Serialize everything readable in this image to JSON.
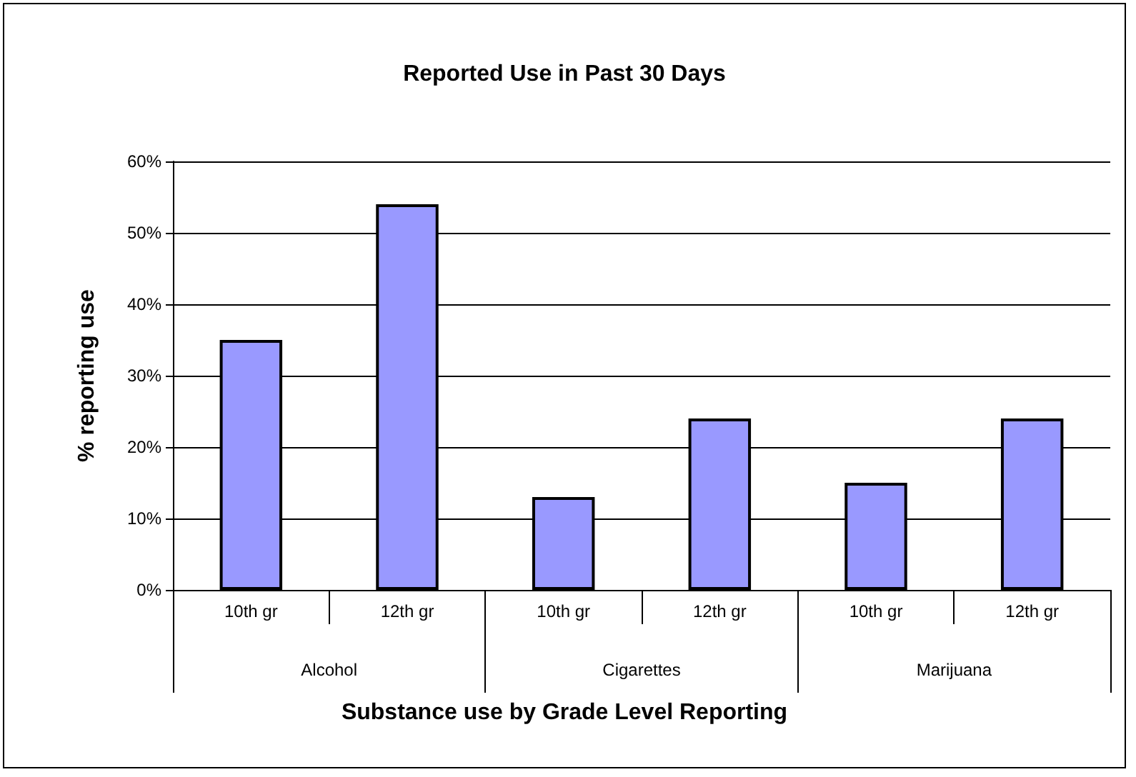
{
  "chart_data": {
    "type": "bar",
    "title": "Reported Use in Past 30 Days",
    "xlabel": "Substance use by Grade Level Reporting",
    "ylabel": "% reporting use",
    "categories": [
      "10th gr",
      "12th gr",
      "10th gr",
      "12th gr",
      "10th gr",
      "12th gr"
    ],
    "annotations": [
      "Alcohol",
      "Cigarettes",
      "Marijuana"
    ],
    "values": [
      35,
      54,
      13,
      24,
      15,
      24
    ],
    "color": "#9999ff",
    "ylim": [
      0,
      60
    ],
    "yticks": [
      {
        "value": 0,
        "label": "0%"
      },
      {
        "value": 10,
        "label": "10%"
      },
      {
        "value": 20,
        "label": "20%"
      },
      {
        "value": 30,
        "label": "30%"
      },
      {
        "value": 40,
        "label": "40%"
      },
      {
        "value": 50,
        "label": "50%"
      },
      {
        "value": 60,
        "label": "60%"
      }
    ],
    "grid": "y"
  }
}
